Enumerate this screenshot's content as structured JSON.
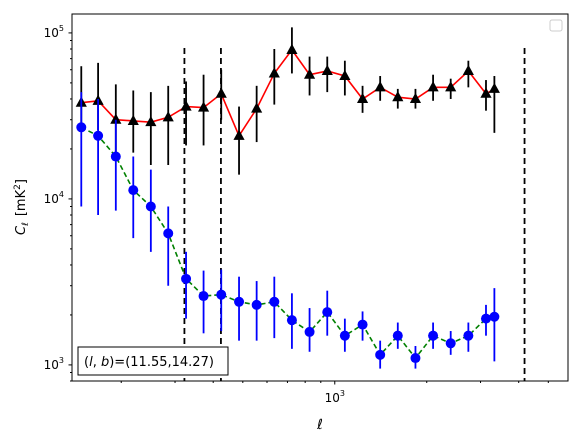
{
  "chart_data": {
    "type": "scatter",
    "title": "",
    "xlabel": "ℓ",
    "ylabel_main": "C",
    "ylabel_sub": "ℓ",
    "ylabel_unit": "[mK",
    "ylabel_unit_sup": "2",
    "ylabel_unit_end": "]",
    "xscale": "log",
    "yscale": "log",
    "xlim": [
      138,
      5800
    ],
    "ylim": [
      800,
      130000
    ],
    "x_ticks": [
      {
        "value": 1000,
        "base": "10",
        "exp": "3"
      }
    ],
    "y_ticks": [
      {
        "value": 1000,
        "base": "10",
        "exp": "3"
      },
      {
        "value": 10000,
        "base": "10",
        "exp": "4"
      },
      {
        "value": 100000,
        "base": "10",
        "exp": "5"
      }
    ],
    "grid": false,
    "legend": "top-right (empty)",
    "annotation": "(l, b)=(11.55,14.27)",
    "annotation_prefix": "(",
    "annotation_l": "l",
    "annotation_mid": ", ",
    "annotation_b": "b",
    "annotation_suffix": ")=(11.55,14.27)",
    "vlines": [
      322,
      424,
      4180
    ],
    "series": [
      {
        "marker": "triangle",
        "color": "#000000",
        "line_color": "#ff0000",
        "line_style": "solid",
        "errorbar_color": "#000000",
        "points": [
          {
            "x": 148,
            "y": 38000,
            "lo": 27000,
            "hi": 63000
          },
          {
            "x": 168,
            "y": 39000,
            "lo": 26000,
            "hi": 66000
          },
          {
            "x": 192,
            "y": 30000,
            "lo": 19000,
            "hi": 49000
          },
          {
            "x": 219,
            "y": 29500,
            "lo": 19000,
            "hi": 45000
          },
          {
            "x": 250,
            "y": 29000,
            "lo": 16000,
            "hi": 44000
          },
          {
            "x": 285,
            "y": 31000,
            "lo": 16000,
            "hi": 48000
          },
          {
            "x": 326,
            "y": 36000,
            "lo": 21000,
            "hi": 51000
          },
          {
            "x": 372,
            "y": 35500,
            "lo": 21000,
            "hi": 56000
          },
          {
            "x": 425,
            "y": 43000,
            "lo": 30000,
            "hi": 60000
          },
          {
            "x": 486,
            "y": 24000,
            "lo": 14000,
            "hi": 36000
          },
          {
            "x": 555,
            "y": 35000,
            "lo": 22000,
            "hi": 48000
          },
          {
            "x": 634,
            "y": 57000,
            "lo": 37000,
            "hi": 80000
          },
          {
            "x": 724,
            "y": 79000,
            "lo": 57000,
            "hi": 108000
          },
          {
            "x": 827,
            "y": 56000,
            "lo": 42000,
            "hi": 72000
          },
          {
            "x": 945,
            "y": 59000,
            "lo": 44000,
            "hi": 72000
          },
          {
            "x": 1079,
            "y": 55000,
            "lo": 42000,
            "hi": 68000
          },
          {
            "x": 1233,
            "y": 40000,
            "lo": 33000,
            "hi": 48000
          },
          {
            "x": 1408,
            "y": 47000,
            "lo": 39000,
            "hi": 55000
          },
          {
            "x": 1608,
            "y": 41000,
            "lo": 35000,
            "hi": 46000
          },
          {
            "x": 1837,
            "y": 40000,
            "lo": 35000,
            "hi": 46000
          },
          {
            "x": 2098,
            "y": 47000,
            "lo": 39000,
            "hi": 56000
          },
          {
            "x": 2396,
            "y": 47000,
            "lo": 40000,
            "hi": 53000
          },
          {
            "x": 2737,
            "y": 59000,
            "lo": 47000,
            "hi": 68000
          },
          {
            "x": 3126,
            "y": 43000,
            "lo": 34000,
            "hi": 52000
          },
          {
            "x": 3330,
            "y": 46000,
            "lo": 25000,
            "hi": 55000
          }
        ]
      },
      {
        "marker": "circle",
        "color": "#0000ff",
        "line_color": "#008000",
        "line_style": "dashed",
        "errorbar_color": "#0000ff",
        "points": [
          {
            "x": 148,
            "y": 27000,
            "lo": 9000,
            "hi": 44000
          },
          {
            "x": 168,
            "y": 24000,
            "lo": 8000,
            "hi": 40000
          },
          {
            "x": 192,
            "y": 18000,
            "lo": 8500,
            "hi": 30000
          },
          {
            "x": 219,
            "y": 11300,
            "lo": 5800,
            "hi": 18000
          },
          {
            "x": 250,
            "y": 9000,
            "lo": 4800,
            "hi": 15000
          },
          {
            "x": 285,
            "y": 6200,
            "lo": 3000,
            "hi": 9000
          },
          {
            "x": 326,
            "y": 3300,
            "lo": 1900,
            "hi": 4800
          },
          {
            "x": 372,
            "y": 2600,
            "lo": 1550,
            "hi": 3700
          },
          {
            "x": 425,
            "y": 2650,
            "lo": 1600,
            "hi": 3750
          },
          {
            "x": 486,
            "y": 2400,
            "lo": 1400,
            "hi": 3400
          },
          {
            "x": 555,
            "y": 2300,
            "lo": 1400,
            "hi": 3200
          },
          {
            "x": 634,
            "y": 2400,
            "lo": 1450,
            "hi": 3400
          },
          {
            "x": 724,
            "y": 1860,
            "lo": 1250,
            "hi": 2700
          },
          {
            "x": 827,
            "y": 1580,
            "lo": 1200,
            "hi": 2200
          },
          {
            "x": 945,
            "y": 2080,
            "lo": 1500,
            "hi": 2800
          },
          {
            "x": 1079,
            "y": 1500,
            "lo": 1200,
            "hi": 1900
          },
          {
            "x": 1233,
            "y": 1750,
            "lo": 1400,
            "hi": 2100
          },
          {
            "x": 1408,
            "y": 1150,
            "lo": 950,
            "hi": 1400
          },
          {
            "x": 1608,
            "y": 1500,
            "lo": 1250,
            "hi": 1800
          },
          {
            "x": 1837,
            "y": 1100,
            "lo": 950,
            "hi": 1300
          },
          {
            "x": 2098,
            "y": 1500,
            "lo": 1250,
            "hi": 1800
          },
          {
            "x": 2396,
            "y": 1350,
            "lo": 1150,
            "hi": 1600
          },
          {
            "x": 2737,
            "y": 1500,
            "lo": 1200,
            "hi": 1800
          },
          {
            "x": 3126,
            "y": 1900,
            "lo": 1500,
            "hi": 2300
          },
          {
            "x": 3330,
            "y": 1950,
            "lo": 1050,
            "hi": 2900
          }
        ]
      }
    ]
  }
}
